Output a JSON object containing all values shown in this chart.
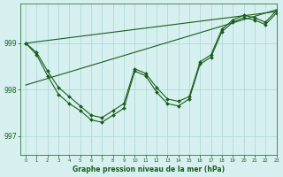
{
  "title": "Graphe pression niveau de la mer (hPa)",
  "background_color": "#d6f0f0",
  "grid_color": "#aad4d4",
  "line_color": "#1a5c1a",
  "marker_color": "#1a5c1a",
  "xlim": [
    -0.5,
    23
  ],
  "ylim": [
    996.6,
    999.85
  ],
  "yticks": [
    997,
    998,
    999
  ],
  "xticks": [
    0,
    1,
    2,
    3,
    4,
    5,
    6,
    7,
    8,
    9,
    10,
    11,
    12,
    13,
    14,
    15,
    16,
    17,
    18,
    19,
    20,
    21,
    22,
    23
  ],
  "series1_x": [
    0,
    1,
    2,
    3,
    4,
    5,
    6,
    7,
    8,
    9,
    10,
    11,
    12,
    13,
    14,
    15,
    16,
    17,
    18,
    19,
    20,
    21,
    22,
    23
  ],
  "series1_y": [
    999.0,
    998.75,
    998.3,
    997.9,
    997.7,
    997.55,
    997.35,
    997.3,
    997.45,
    997.6,
    998.4,
    998.3,
    997.95,
    997.7,
    997.65,
    997.8,
    998.55,
    998.7,
    999.25,
    999.45,
    999.55,
    999.5,
    999.4,
    999.65
  ],
  "series2_x": [
    0,
    1,
    2,
    3,
    4,
    5,
    6,
    7,
    8,
    9,
    10,
    11,
    12,
    13,
    14,
    15,
    16,
    17,
    18,
    19,
    20,
    21,
    22,
    23
  ],
  "series2_y": [
    999.0,
    998.8,
    998.4,
    998.05,
    997.85,
    997.65,
    997.45,
    997.4,
    997.55,
    997.7,
    998.45,
    998.35,
    998.05,
    997.8,
    997.75,
    997.85,
    998.6,
    998.75,
    999.3,
    999.5,
    999.6,
    999.55,
    999.45,
    999.7
  ],
  "trend1_x": [
    0,
    23
  ],
  "trend1_y": [
    999.0,
    999.68
  ],
  "trend2_x": [
    0,
    23
  ],
  "trend2_y": [
    998.1,
    999.72
  ]
}
